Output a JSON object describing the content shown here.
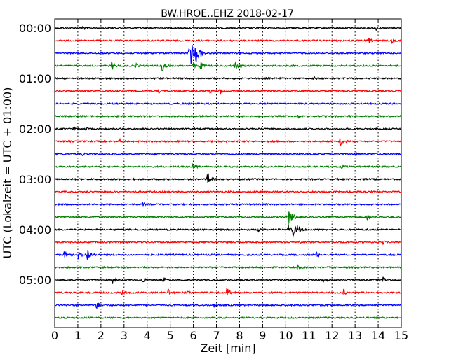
{
  "chart_data": {
    "type": "line",
    "title": "BW.HROE..EHZ 2018-02-17",
    "xlabel": "Zeit  [min]",
    "ylabel": "UTC (Lokalzeit = UTC + 01:00)",
    "xlim": [
      0,
      15
    ],
    "x_ticks": [
      "0",
      "1",
      "2",
      "3",
      "4",
      "5",
      "6",
      "7",
      "8",
      "9",
      "10",
      "11",
      "12",
      "13",
      "14",
      "15"
    ],
    "y_tick_labels": [
      "00:00",
      "01:00",
      "02:00",
      "03:00",
      "04:00",
      "05:00"
    ],
    "y_tick_rows": [
      0,
      4,
      8,
      12,
      16,
      20
    ],
    "grid": true,
    "row_interval_minutes": 15,
    "colors": [
      "#000000",
      "#ff0000",
      "#0000ff",
      "#008000"
    ],
    "rows": [
      {
        "start": "00:00",
        "events": [
          [
            1.2,
            3
          ],
          [
            13.9,
            3
          ]
        ]
      },
      {
        "start": "00:15",
        "events": [
          [
            13.6,
            4
          ],
          [
            14.6,
            4
          ]
        ]
      },
      {
        "start": "00:30",
        "events": [
          [
            5.9,
            14
          ],
          [
            6.1,
            12
          ],
          [
            5.8,
            8
          ],
          [
            6.3,
            6
          ]
        ]
      },
      {
        "start": "00:45",
        "events": [
          [
            2.45,
            9
          ],
          [
            3.5,
            5
          ],
          [
            4.65,
            9
          ],
          [
            6.0,
            6
          ],
          [
            6.3,
            7
          ],
          [
            7.8,
            8
          ]
        ]
      },
      {
        "start": "01:00",
        "events": [
          [
            11.2,
            3
          ]
        ]
      },
      {
        "start": "01:15",
        "events": [
          [
            4.5,
            3
          ],
          [
            6.7,
            3
          ],
          [
            7.15,
            6
          ]
        ]
      },
      {
        "start": "01:30",
        "events": []
      },
      {
        "start": "01:45",
        "events": [
          [
            10.5,
            3
          ]
        ]
      },
      {
        "start": "02:00",
        "events": [
          [
            0.8,
            3
          ],
          [
            1.3,
            3
          ]
        ]
      },
      {
        "start": "02:15",
        "events": [
          [
            2.8,
            3
          ],
          [
            12.35,
            9
          ]
        ]
      },
      {
        "start": "02:30",
        "events": [
          [
            1.2,
            4
          ],
          [
            13.0,
            3
          ]
        ]
      },
      {
        "start": "02:45",
        "events": [
          [
            5.95,
            8
          ],
          [
            12.4,
            3
          ]
        ]
      },
      {
        "start": "03:00",
        "events": [
          [
            6.6,
            12
          ]
        ]
      },
      {
        "start": "03:15",
        "events": []
      },
      {
        "start": "03:30",
        "events": [
          [
            3.8,
            3
          ]
        ]
      },
      {
        "start": "03:45",
        "events": [
          [
            10.1,
            16
          ],
          [
            13.5,
            5
          ]
        ]
      },
      {
        "start": "04:00",
        "events": [
          [
            10.1,
            8
          ],
          [
            10.3,
            10
          ],
          [
            10.5,
            9
          ],
          [
            8.8,
            4
          ]
        ]
      },
      {
        "start": "04:15",
        "events": [
          [
            10.6,
            3
          ],
          [
            14.2,
            3
          ]
        ]
      },
      {
        "start": "04:30",
        "events": [
          [
            0.4,
            6
          ],
          [
            1.0,
            8
          ],
          [
            1.4,
            12
          ],
          [
            11.3,
            5
          ]
        ]
      },
      {
        "start": "04:45",
        "events": [
          [
            10.5,
            4
          ]
        ]
      },
      {
        "start": "05:00",
        "events": [
          [
            2.5,
            5
          ],
          [
            3.8,
            4
          ],
          [
            4.7,
            4
          ],
          [
            11.6,
            4
          ],
          [
            14.2,
            5
          ]
        ]
      },
      {
        "start": "05:15",
        "events": [
          [
            4.9,
            8
          ],
          [
            5.7,
            4
          ],
          [
            7.45,
            8
          ],
          [
            12.5,
            5
          ],
          [
            2.9,
            3
          ]
        ]
      },
      {
        "start": "05:30",
        "events": [
          [
            1.8,
            7
          ],
          [
            6.9,
            3
          ]
        ]
      },
      {
        "start": "05:45",
        "events": []
      }
    ]
  }
}
